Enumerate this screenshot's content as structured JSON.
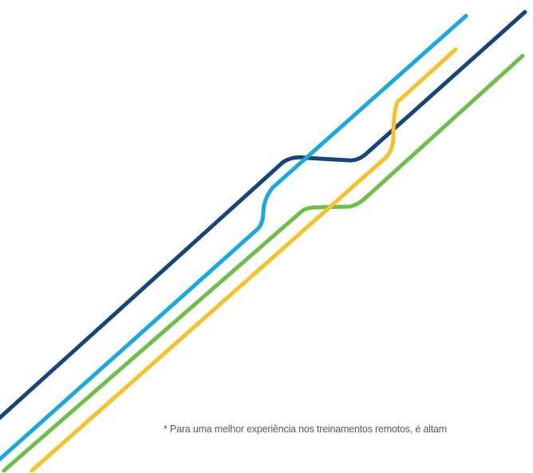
{
  "decoration": {
    "lines": [
      {
        "name": "navy",
        "color": "#17447a"
      },
      {
        "name": "cyan",
        "color": "#19a9e0"
      },
      {
        "name": "green",
        "color": "#6cc04a"
      },
      {
        "name": "yellow",
        "color": "#f7c12a"
      }
    ]
  },
  "footnote": {
    "text": "* Para uma melhor experiência nos treinamentos remotos, é altam"
  }
}
